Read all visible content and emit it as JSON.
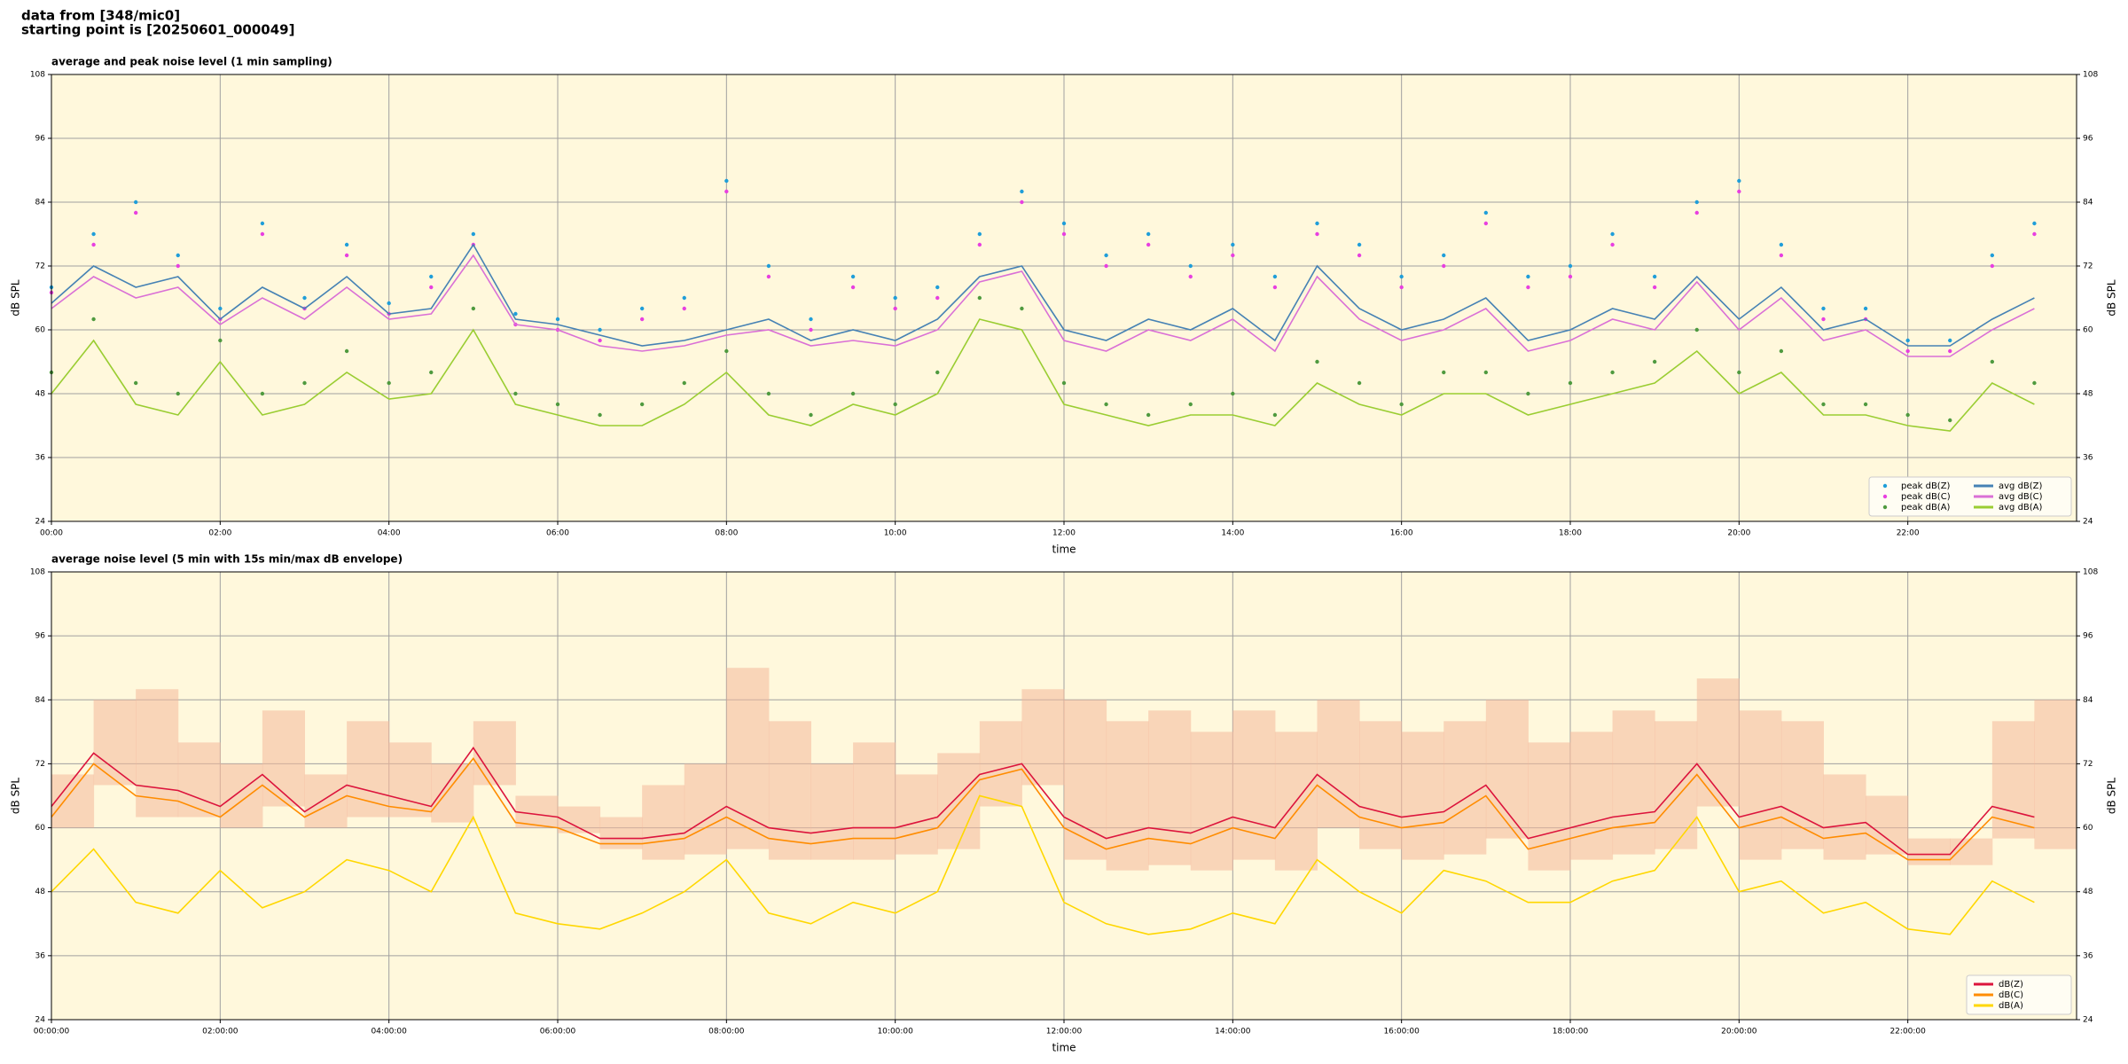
{
  "header": {
    "line1": "data from [348/mic0]",
    "line2": "starting point is [20250601_000049]"
  },
  "chart_data": [
    {
      "type": "line",
      "title": "average and peak noise level (1 min sampling)",
      "xlabel": "time",
      "ylabel": "dB SPL",
      "grid": true,
      "legend": "lower right",
      "background": "#fff8dc",
      "xlim": [
        0,
        24
      ],
      "ylim": [
        24,
        108
      ],
      "yticks": [
        24,
        36,
        48,
        60,
        72,
        84,
        96,
        108
      ],
      "xticks": [
        {
          "value": 0,
          "label": "00:00"
        },
        {
          "value": 2,
          "label": "02:00"
        },
        {
          "value": 4,
          "label": "04:00"
        },
        {
          "value": 6,
          "label": "06:00"
        },
        {
          "value": 8,
          "label": "08:00"
        },
        {
          "value": 10,
          "label": "10:00"
        },
        {
          "value": 12,
          "label": "12:00"
        },
        {
          "value": 14,
          "label": "14:00"
        },
        {
          "value": 16,
          "label": "16:00"
        },
        {
          "value": 18,
          "label": "18:00"
        },
        {
          "value": 20,
          "label": "20:00"
        },
        {
          "value": 22,
          "label": "22:00"
        }
      ],
      "x": [
        0,
        0.5,
        1,
        1.5,
        2,
        2.5,
        3,
        3.5,
        4,
        4.5,
        5,
        5.5,
        6,
        6.5,
        7,
        7.5,
        8,
        8.5,
        9,
        9.5,
        10,
        10.5,
        11,
        11.5,
        12,
        12.5,
        13,
        13.5,
        14,
        14.5,
        15,
        15.5,
        16,
        16.5,
        17,
        17.5,
        18,
        18.5,
        19,
        19.5,
        20,
        20.5,
        21,
        21.5,
        22,
        22.5,
        23,
        23.5
      ],
      "series": [
        {
          "name": "peak dB(Z)",
          "style": "scatter",
          "color": "#1f9ed9",
          "values": [
            68,
            78,
            84,
            74,
            64,
            80,
            66,
            76,
            65,
            70,
            78,
            63,
            62,
            60,
            64,
            66,
            88,
            72,
            62,
            70,
            66,
            68,
            78,
            86,
            80,
            74,
            78,
            72,
            76,
            70,
            80,
            76,
            70,
            74,
            82,
            70,
            72,
            78,
            70,
            84,
            88,
            76,
            64,
            64,
            58,
            58,
            74,
            80
          ]
        },
        {
          "name": "peak dB(C)",
          "style": "scatter",
          "color": "#e83fe0",
          "values": [
            67,
            76,
            82,
            72,
            62,
            78,
            64,
            74,
            63,
            68,
            76,
            61,
            60,
            58,
            62,
            64,
            86,
            70,
            60,
            68,
            64,
            66,
            76,
            84,
            78,
            72,
            76,
            70,
            74,
            68,
            78,
            74,
            68,
            72,
            80,
            68,
            70,
            76,
            68,
            82,
            86,
            74,
            62,
            62,
            56,
            56,
            72,
            78
          ]
        },
        {
          "name": "peak dB(A)",
          "style": "scatter",
          "color": "#4f9a3f",
          "values": [
            52,
            62,
            50,
            48,
            58,
            48,
            50,
            56,
            50,
            52,
            64,
            48,
            46,
            44,
            46,
            50,
            56,
            48,
            44,
            48,
            46,
            52,
            66,
            64,
            50,
            46,
            44,
            46,
            48,
            44,
            54,
            50,
            46,
            52,
            52,
            48,
            50,
            52,
            54,
            60,
            52,
            56,
            46,
            46,
            44,
            43,
            54,
            50
          ]
        },
        {
          "name": "avg dB(Z)",
          "style": "line",
          "color": "#4682b4",
          "values": [
            65,
            72,
            68,
            70,
            62,
            68,
            64,
            70,
            63,
            64,
            76,
            62,
            61,
            59,
            57,
            58,
            60,
            62,
            58,
            60,
            58,
            62,
            70,
            72,
            60,
            58,
            62,
            60,
            64,
            58,
            72,
            64,
            60,
            62,
            66,
            58,
            60,
            64,
            62,
            70,
            62,
            68,
            60,
            62,
            57,
            57,
            62,
            66
          ]
        },
        {
          "name": "avg dB(C)",
          "style": "line",
          "color": "#da70d6",
          "values": [
            64,
            70,
            66,
            68,
            61,
            66,
            62,
            68,
            62,
            63,
            74,
            61,
            60,
            57,
            56,
            57,
            59,
            60,
            57,
            58,
            57,
            60,
            69,
            71,
            58,
            56,
            60,
            58,
            62,
            56,
            70,
            62,
            58,
            60,
            64,
            56,
            58,
            62,
            60,
            69,
            60,
            66,
            58,
            60,
            55,
            55,
            60,
            64
          ]
        },
        {
          "name": "avg dB(A)",
          "style": "line",
          "color": "#9acd32",
          "values": [
            48,
            58,
            46,
            44,
            54,
            44,
            46,
            52,
            47,
            48,
            60,
            46,
            44,
            42,
            42,
            46,
            52,
            44,
            42,
            46,
            44,
            48,
            62,
            60,
            46,
            44,
            42,
            44,
            44,
            42,
            50,
            46,
            44,
            48,
            48,
            44,
            46,
            48,
            50,
            56,
            48,
            52,
            44,
            44,
            42,
            41,
            50,
            46
          ]
        }
      ]
    },
    {
      "type": "line",
      "title": "average noise level (5 min with 15s min/max dB envelope)",
      "xlabel": "time",
      "ylabel": "dB SPL",
      "grid": true,
      "legend": "lower right",
      "background": "#fff8dc",
      "envelope_color": "#f4b89a",
      "xlim": [
        0,
        24
      ],
      "ylim": [
        24,
        108
      ],
      "yticks": [
        24,
        36,
        48,
        60,
        72,
        84,
        96,
        108
      ],
      "xticks": [
        {
          "value": 0,
          "label": "00:00:00"
        },
        {
          "value": 2,
          "label": "02:00:00"
        },
        {
          "value": 4,
          "label": "04:00:00"
        },
        {
          "value": 6,
          "label": "06:00:00"
        },
        {
          "value": 8,
          "label": "08:00:00"
        },
        {
          "value": 10,
          "label": "10:00:00"
        },
        {
          "value": 12,
          "label": "12:00:00"
        },
        {
          "value": 14,
          "label": "14:00:00"
        },
        {
          "value": 16,
          "label": "16:00:00"
        },
        {
          "value": 18,
          "label": "18:00:00"
        },
        {
          "value": 20,
          "label": "20:00:00"
        },
        {
          "value": 22,
          "label": "22:00:00"
        }
      ],
      "x": [
        0,
        0.5,
        1,
        1.5,
        2,
        2.5,
        3,
        3.5,
        4,
        4.5,
        5,
        5.5,
        6,
        6.5,
        7,
        7.5,
        8,
        8.5,
        9,
        9.5,
        10,
        10.5,
        11,
        11.5,
        12,
        12.5,
        13,
        13.5,
        14,
        14.5,
        15,
        15.5,
        16,
        16.5,
        17,
        17.5,
        18,
        18.5,
        19,
        19.5,
        20,
        20.5,
        21,
        21.5,
        22,
        22.5,
        23,
        23.5
      ],
      "envelope_max": [
        70,
        84,
        86,
        76,
        72,
        82,
        70,
        80,
        76,
        72,
        80,
        66,
        64,
        62,
        68,
        72,
        90,
        80,
        72,
        76,
        70,
        74,
        80,
        86,
        84,
        80,
        82,
        78,
        82,
        78,
        84,
        80,
        78,
        80,
        84,
        76,
        78,
        82,
        80,
        88,
        82,
        80,
        70,
        66,
        58,
        58,
        80,
        84
      ],
      "envelope_min": [
        60,
        68,
        62,
        62,
        60,
        64,
        60,
        62,
        62,
        61,
        68,
        60,
        59,
        56,
        54,
        55,
        56,
        54,
        54,
        54,
        55,
        56,
        64,
        68,
        54,
        52,
        53,
        52,
        54,
        52,
        60,
        56,
        54,
        55,
        58,
        52,
        54,
        55,
        56,
        64,
        54,
        56,
        54,
        55,
        53,
        53,
        58,
        56
      ],
      "series": [
        {
          "name": "dB(Z)",
          "style": "line",
          "color": "#dc143c",
          "values": [
            64,
            74,
            68,
            67,
            64,
            70,
            63,
            68,
            66,
            64,
            75,
            63,
            62,
            58,
            58,
            59,
            64,
            60,
            59,
            60,
            60,
            62,
            70,
            72,
            62,
            58,
            60,
            59,
            62,
            60,
            70,
            64,
            62,
            63,
            68,
            58,
            60,
            62,
            63,
            72,
            62,
            64,
            60,
            61,
            55,
            55,
            64,
            62
          ]
        },
        {
          "name": "dB(C)",
          "style": "line",
          "color": "#ff8c00",
          "values": [
            62,
            72,
            66,
            65,
            62,
            68,
            62,
            66,
            64,
            63,
            73,
            61,
            60,
            57,
            57,
            58,
            62,
            58,
            57,
            58,
            58,
            60,
            69,
            71,
            60,
            56,
            58,
            57,
            60,
            58,
            68,
            62,
            60,
            61,
            66,
            56,
            58,
            60,
            61,
            70,
            60,
            62,
            58,
            59,
            54,
            54,
            62,
            60
          ]
        },
        {
          "name": "dB(A)",
          "style": "line",
          "color": "#ffd700",
          "values": [
            48,
            56,
            46,
            44,
            52,
            45,
            48,
            54,
            52,
            48,
            62,
            44,
            42,
            41,
            44,
            48,
            54,
            44,
            42,
            46,
            44,
            48,
            66,
            64,
            46,
            42,
            40,
            41,
            44,
            42,
            54,
            48,
            44,
            52,
            50,
            46,
            46,
            50,
            52,
            62,
            48,
            50,
            44,
            46,
            41,
            40,
            50,
            46
          ]
        }
      ]
    }
  ]
}
